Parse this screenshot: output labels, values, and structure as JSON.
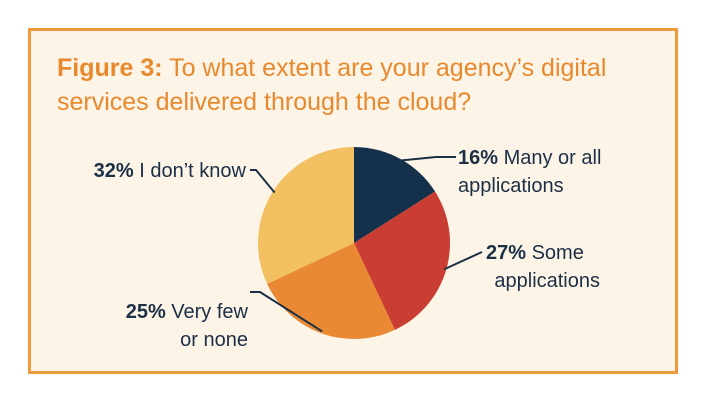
{
  "chart_data": {
    "type": "pie",
    "title_prefix": "Figure 3:",
    "title": "To what extent are your agency’s digital services delivered through the cloud?",
    "slices": [
      {
        "label_line1": "Many or all",
        "label_line2": "applications",
        "percent_text": "16%",
        "value": 16,
        "color": "#14304a"
      },
      {
        "label_line1": "Some",
        "label_line2": "applications",
        "percent_text": "27%",
        "value": 27,
        "color": "#c93d33"
      },
      {
        "label_line1": "Very few",
        "label_line2": "or none",
        "percent_text": "25%",
        "value": 25,
        "color": "#e98934"
      },
      {
        "label_line1": "I don’t know",
        "label_line2": "",
        "percent_text": "32%",
        "value": 32,
        "color": "#f2c060"
      }
    ],
    "start_angle": "12 o'clock",
    "direction": "clockwise",
    "legend": "none (callout labels)"
  },
  "colors": {
    "border": "#ec9a3c",
    "background": "#fcf4e7",
    "title": "#e8892e",
    "label_text": "#1b2f45"
  }
}
